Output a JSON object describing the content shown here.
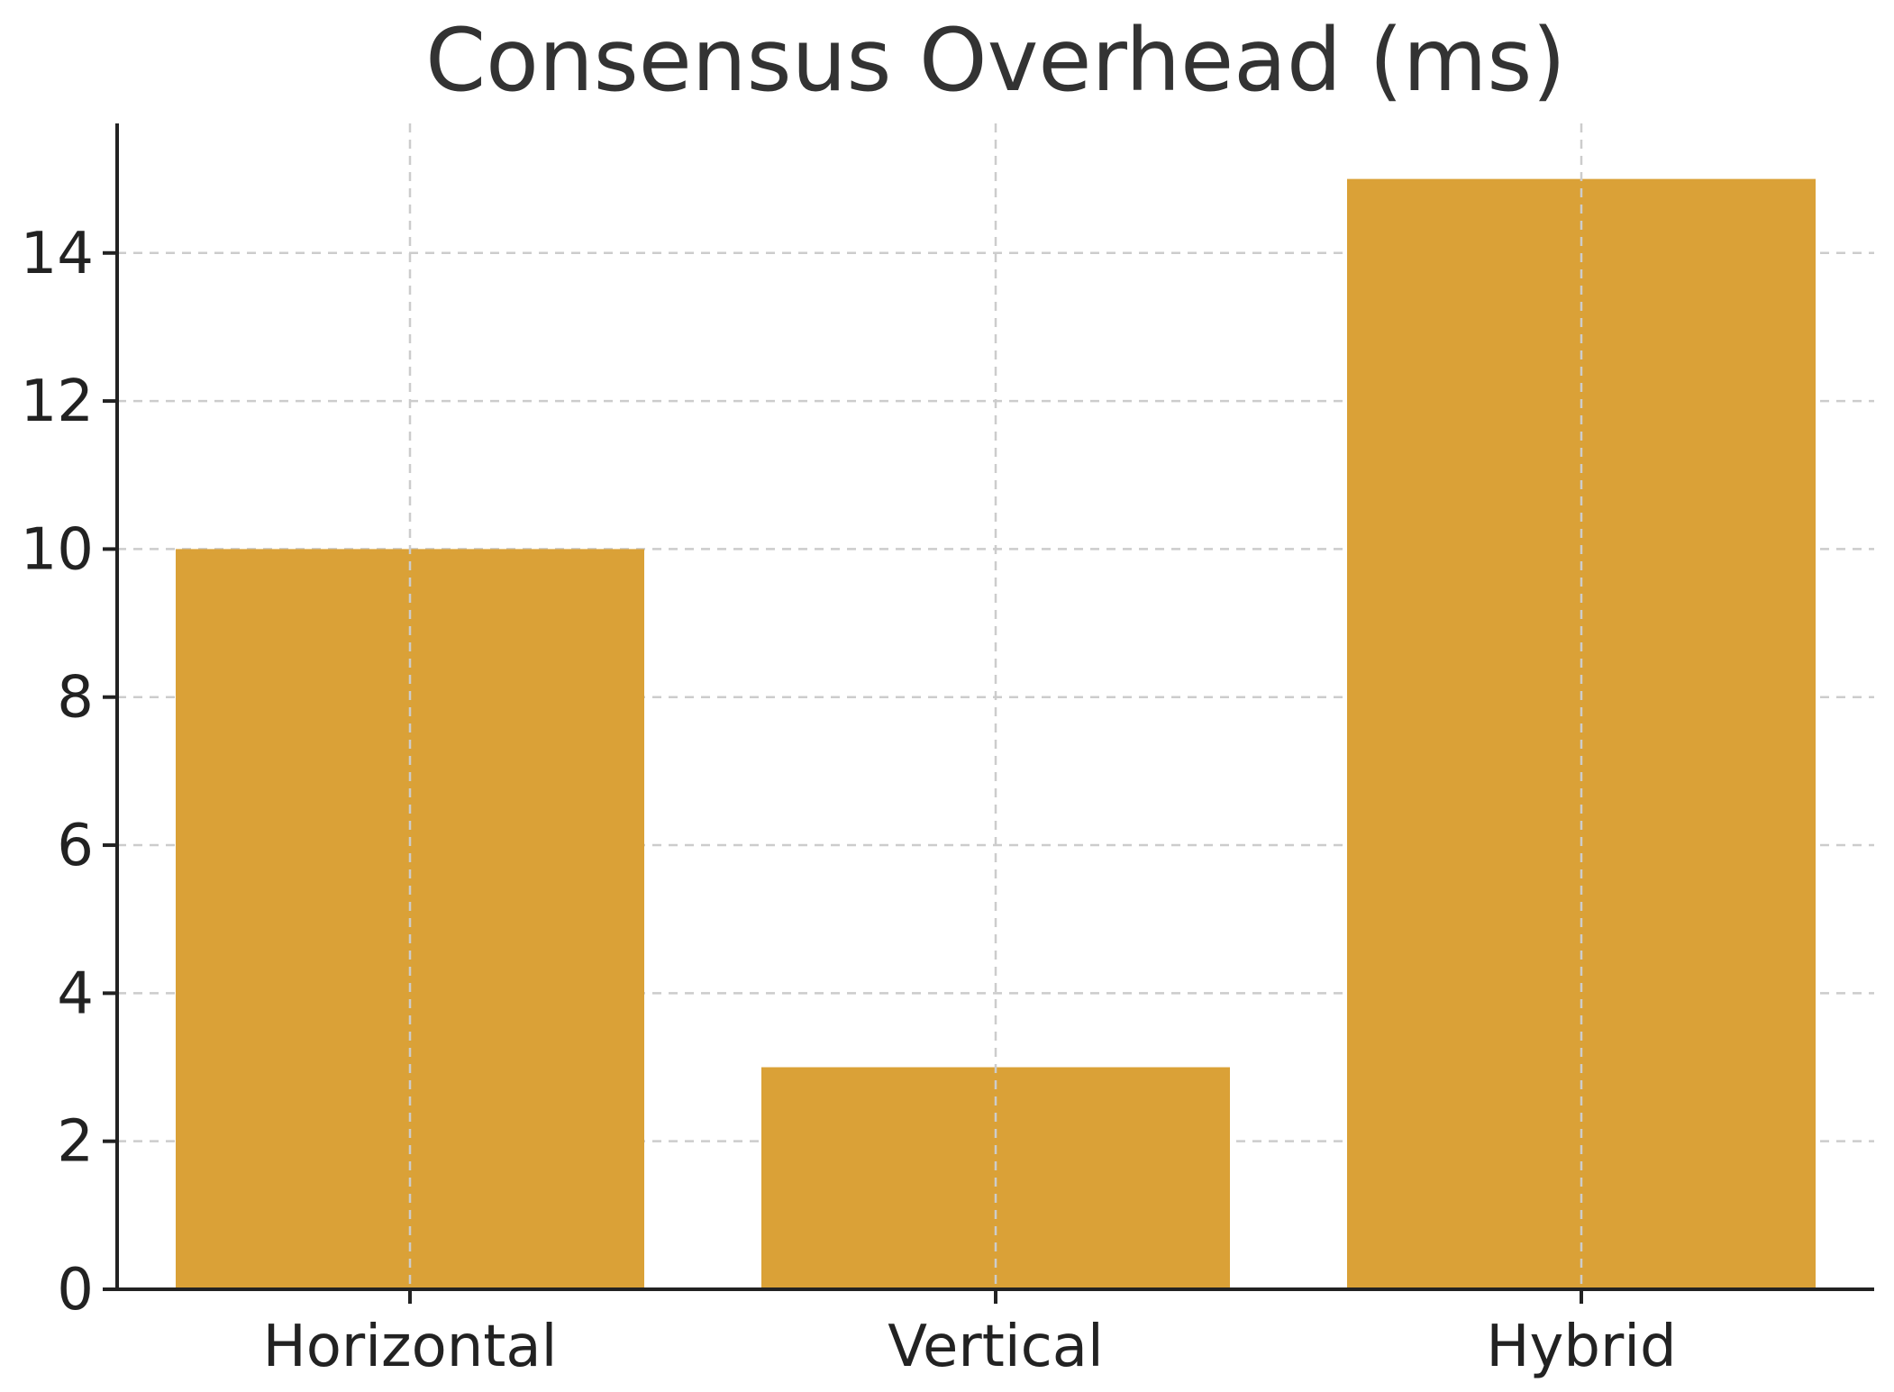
{
  "chart_data": {
    "type": "bar",
    "title": "Consensus Overhead (ms)",
    "xlabel": "",
    "ylabel": "",
    "categories": [
      "Horizontal",
      "Vertical",
      "Hybrid"
    ],
    "values": [
      10,
      3,
      15
    ],
    "ylim": [
      0,
      15.75
    ],
    "yticks": [
      0,
      2,
      4,
      6,
      8,
      10,
      12,
      14
    ],
    "grid": true,
    "bar_color": "#DAA137"
  }
}
